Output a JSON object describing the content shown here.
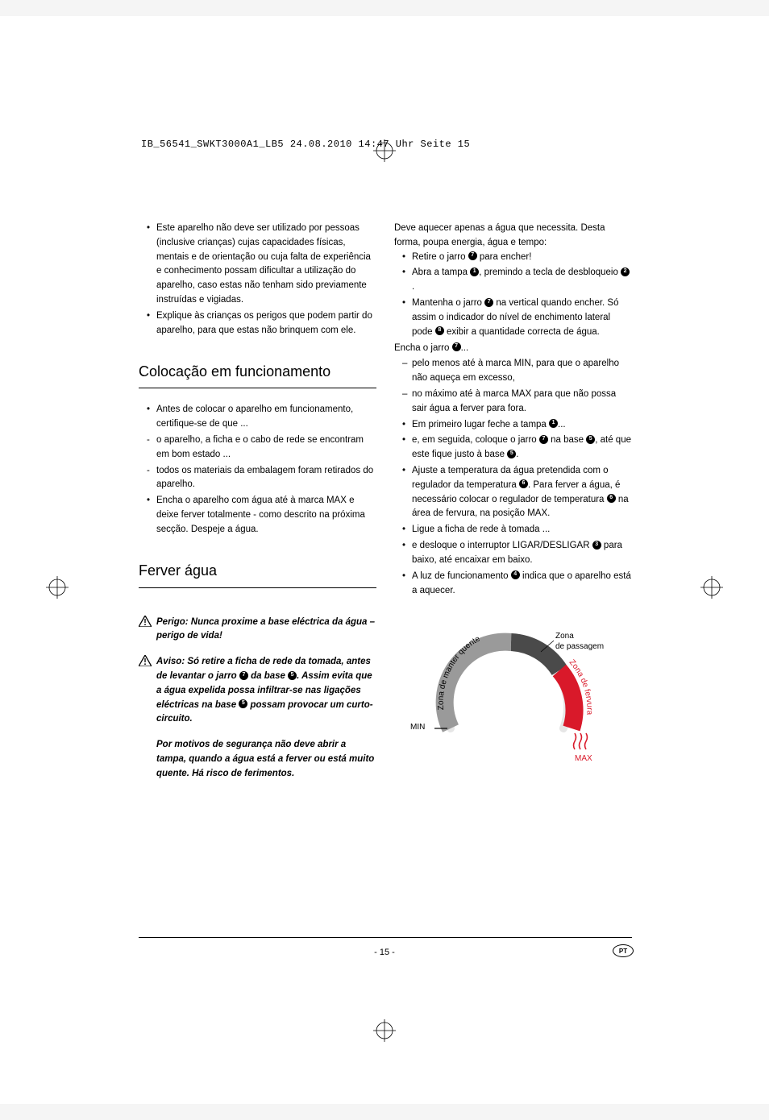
{
  "header": {
    "text": "IB_56541_SWKT3000A1_LB5  24.08.2010  14:47 Uhr  Seite 15"
  },
  "left_column": {
    "intro_bullets": [
      "Este aparelho não deve ser utilizado por pessoas (inclusive crianças) cujas capacidades físicas, mentais e de orientação ou cuja falta de experiência e conhecimento possam dificultar a utilização do aparelho, caso estas não tenham sido previamente instruídas e vigiadas.",
      "Explique às crianças os perigos que podem partir do aparelho, para que estas não brinquem com ele."
    ],
    "section1_title": "Colocação em funcionamento",
    "section1_items": [
      {
        "type": "bullet",
        "text": "Antes de colocar o aparelho em funcionamento, certifique-se de que ..."
      },
      {
        "type": "dash",
        "text": "o aparelho, a ficha e o cabo de rede se encontram em bom estado ..."
      },
      {
        "type": "dash",
        "text": "todos os materiais da embalagem foram retirados do aparelho."
      },
      {
        "type": "bullet",
        "text": "Encha o aparelho com água até à marca MAX e deixe ferver totalmente - como descrito na próxima secção. Despeje a água."
      }
    ],
    "section2_title": "Ferver água",
    "warning1": "Perigo: Nunca proxime a base eléctrica da água – perigo de vida!",
    "warning2_parts": {
      "a": "Aviso: Só retire a ficha de rede da tomada, antes de levantar o jarro ",
      "b": " da base ",
      "c": ". Assim evita que a água expelida possa infiltrar-se nas ligações eléctricas na base ",
      "d": "  possam provocar um curto-circuito."
    },
    "warning3": "Por motivos de segurança não deve abrir a tampa, quando a água está a ferver ou está muito quente. Há risco de ferimentos."
  },
  "right_column": {
    "intro": "Deve aquecer apenas a água que necessita. Desta forma, poupa energia, água e tempo:",
    "items": [
      {
        "type": "bullet",
        "parts": [
          "Retire o jarro ",
          {
            "num": "7"
          },
          " para encher!"
        ]
      },
      {
        "type": "bullet",
        "parts": [
          "Abra a tampa ",
          {
            "num": "1"
          },
          ", premindo a tecla de desbloqueio ",
          {
            "num": "2"
          },
          "."
        ]
      },
      {
        "type": "bullet",
        "parts": [
          "Mantenha o jarro ",
          {
            "num": "7"
          },
          " na vertical quando encher. Só assim o indicador do nível de enchimento lateral pode ",
          {
            "num": "8"
          },
          " exibir a quantidade correcta de água."
        ]
      }
    ],
    "plain_line_parts": [
      "Encha o jarro ",
      {
        "num": "7"
      },
      "..."
    ],
    "dash_items": [
      "pelo menos até à marca MIN, para que o aparelho não aqueça em excesso,",
      "no máximo até à marca MAX para que não possa sair água a ferver para fora."
    ],
    "items2": [
      {
        "type": "bullet",
        "parts": [
          "Em primeiro lugar feche a tampa ",
          {
            "num": "1"
          },
          "..."
        ]
      },
      {
        "type": "bullet",
        "parts": [
          "e, em seguida, coloque o jarro ",
          {
            "num": "7"
          },
          " na base ",
          {
            "num": "5"
          },
          ", até que este fique justo à base ",
          {
            "num": "5"
          },
          "."
        ]
      },
      {
        "type": "bullet",
        "parts": [
          "Ajuste a temperatura da água pretendida com o regulador da temperatura ",
          {
            "num": "6"
          },
          ". Para ferver a água, é necessário colocar o regulador de temperatura ",
          {
            "num": "6"
          },
          " na área de fervura, na posição MAX."
        ]
      },
      {
        "type": "bullet",
        "parts": [
          "Ligue a ficha de rede à tomada ..."
        ]
      },
      {
        "type": "bullet",
        "parts": [
          "e desloque o interruptor LIGAR/DESLIGAR ",
          {
            "num": "3"
          },
          " para baixo, até encaixar em baixo."
        ]
      },
      {
        "type": "bullet",
        "parts": [
          "A luz de funcionamento ",
          {
            "num": "4"
          },
          " indica que o aparelho está a aquecer."
        ]
      }
    ]
  },
  "gauge": {
    "min_label": "MIN",
    "max_label": "MAX",
    "zone_warm": "Zona de manter quente",
    "zone_pass_1": "Zona",
    "zone_pass_2": "de passagem",
    "zone_boil": "Zona de fervura",
    "colors": {
      "warm": "#9a9a9a",
      "pass": "#4a4a4a",
      "boil": "#d9192a",
      "dial": "#9a9a9a",
      "track_light": "#e6e6e6"
    }
  },
  "footer": {
    "page_number": "- 15 -",
    "lang_code": "PT"
  }
}
